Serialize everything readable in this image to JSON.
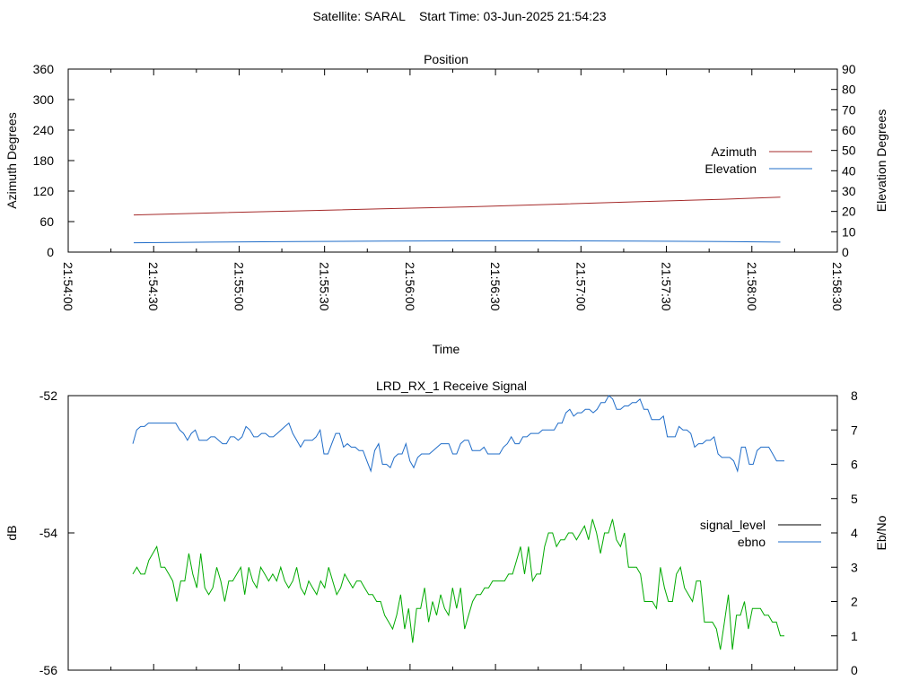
{
  "figure_title": "Satellite: SARAL    Start Time: 03-Jun-2025 21:54:23",
  "colors": {
    "azimuth": "#a52a2a",
    "elevation": "#1f6cc8",
    "signal_level": "#000000",
    "ebno_legend": "#1f6cc8",
    "ebno_line": "#1f6cc8",
    "signal_line": "#00aa00"
  },
  "chart_data": [
    {
      "type": "line",
      "title": "Position",
      "xlabel": "Time",
      "ylabel": "Azimuth Degrees",
      "y2label": "Elevation Degrees",
      "grid": false,
      "legend_position": "right",
      "x_ticks": [
        "21:54:00",
        "21:54:30",
        "21:55:00",
        "21:55:30",
        "21:56:00",
        "21:56:30",
        "21:57:00",
        "21:57:30",
        "21:58:00",
        "21:58:30"
      ],
      "ylim": [
        0,
        360
      ],
      "yticks": [
        "0",
        "60",
        "120",
        "180",
        "240",
        "300",
        "360"
      ],
      "y2lim": [
        0,
        90
      ],
      "y2ticks": [
        "0",
        "10",
        "20",
        "30",
        "40",
        "50",
        "60",
        "70",
        "80",
        "90"
      ],
      "series": [
        {
          "name": "Azimuth",
          "axis": "left",
          "x": [
            "21:54:23",
            "21:54:50",
            "21:55:20",
            "21:55:50",
            "21:56:20",
            "21:56:50",
            "21:57:20",
            "21:57:50",
            "21:58:10"
          ],
          "values": [
            73,
            77,
            81,
            85,
            89,
            94,
            99,
            104,
            108
          ]
        },
        {
          "name": "Elevation",
          "axis": "right",
          "x": [
            "21:54:23",
            "21:54:50",
            "21:55:20",
            "21:55:50",
            "21:56:20",
            "21:56:50",
            "21:57:20",
            "21:57:50",
            "21:58:10"
          ],
          "values": [
            4.6,
            4.9,
            5.2,
            5.4,
            5.5,
            5.5,
            5.4,
            5.2,
            4.9
          ]
        }
      ]
    },
    {
      "type": "line",
      "title": "LRD_RX_1 Receive Signal",
      "ylabel": "dB",
      "y2label": "Eb/No",
      "grid": false,
      "legend_position": "right",
      "ylim": [
        -56,
        -52
      ],
      "yticks": [
        "-56",
        "-54",
        "-52"
      ],
      "y2lim": [
        0,
        8
      ],
      "y2ticks": [
        "0",
        "1",
        "2",
        "3",
        "4",
        "5",
        "6",
        "7",
        "8"
      ],
      "legend": [
        "signal_level",
        "ebno"
      ],
      "series": [
        {
          "name": "ebno",
          "axis": "right",
          "values": [
            6.6,
            7.0,
            7.1,
            7.1,
            7.2,
            7.2,
            7.2,
            7.2,
            7.2,
            7.2,
            7.2,
            7.2,
            7.0,
            6.9,
            6.7,
            6.9,
            7.0,
            6.7,
            6.7,
            6.7,
            6.8,
            6.8,
            6.7,
            6.6,
            6.6,
            6.8,
            6.8,
            6.7,
            6.8,
            7.1,
            7.0,
            6.8,
            6.8,
            6.9,
            6.9,
            6.8,
            6.8,
            6.9,
            7.0,
            7.1,
            7.2,
            6.9,
            6.7,
            6.5,
            6.7,
            6.7,
            6.7,
            6.8,
            7.0,
            6.3,
            6.3,
            6.6,
            6.9,
            6.9,
            6.5,
            6.6,
            6.5,
            6.5,
            6.4,
            6.4,
            6.1,
            5.8,
            6.4,
            6.6,
            6.0,
            6.0,
            5.9,
            6.2,
            6.3,
            6.3,
            6.6,
            6.1,
            5.9,
            6.2,
            6.3,
            6.3,
            6.3,
            6.4,
            6.5,
            6.6,
            6.6,
            6.6,
            6.3,
            6.3,
            6.6,
            6.7,
            6.7,
            6.4,
            6.4,
            6.4,
            6.5,
            6.3,
            6.3,
            6.3,
            6.3,
            6.5,
            6.6,
            6.8,
            6.6,
            6.6,
            6.8,
            6.8,
            6.9,
            6.9,
            6.9,
            7.0,
            7.0,
            7.0,
            7.0,
            7.2,
            7.2,
            7.5,
            7.6,
            7.4,
            7.5,
            7.5,
            7.6,
            7.6,
            7.5,
            7.6,
            7.8,
            7.8,
            8.0,
            7.9,
            7.6,
            7.6,
            7.7,
            7.7,
            7.8,
            7.8,
            7.9,
            7.6,
            7.6,
            7.3,
            7.3,
            7.3,
            7.4,
            6.8,
            6.8,
            6.8,
            7.1,
            7.0,
            7.0,
            6.9,
            6.5,
            6.6,
            6.6,
            6.7,
            6.7,
            6.8,
            6.3,
            6.2,
            6.2,
            6.2,
            6.1,
            5.8,
            6.5,
            6.5,
            6.0,
            6.0,
            6.4,
            6.5,
            6.5,
            6.5,
            6.3,
            6.1,
            6.1,
            6.1
          ]
        },
        {
          "name": "signal_level",
          "axis": "left",
          "values": [
            -54.6,
            -54.5,
            -54.6,
            -54.6,
            -54.4,
            -54.3,
            -54.2,
            -54.5,
            -54.5,
            -54.6,
            -54.7,
            -55.0,
            -54.7,
            -54.7,
            -54.3,
            -54.6,
            -54.8,
            -54.3,
            -54.8,
            -54.9,
            -54.8,
            -54.5,
            -54.7,
            -55.0,
            -54.7,
            -54.7,
            -54.6,
            -54.5,
            -54.9,
            -54.5,
            -54.7,
            -54.8,
            -54.5,
            -54.6,
            -54.7,
            -54.6,
            -54.7,
            -54.5,
            -54.7,
            -54.8,
            -54.7,
            -54.5,
            -54.8,
            -54.9,
            -54.7,
            -54.8,
            -54.9,
            -54.7,
            -54.8,
            -54.5,
            -54.7,
            -54.9,
            -54.8,
            -54.6,
            -54.7,
            -54.8,
            -54.7,
            -54.7,
            -54.8,
            -54.9,
            -54.9,
            -55.0,
            -55.0,
            -55.2,
            -55.3,
            -55.4,
            -55.2,
            -54.9,
            -55.4,
            -55.1,
            -55.6,
            -55.1,
            -55.1,
            -54.8,
            -55.3,
            -55.0,
            -55.2,
            -54.9,
            -55.1,
            -55.2,
            -54.8,
            -55.1,
            -54.8,
            -55.4,
            -55.2,
            -55.0,
            -54.9,
            -54.9,
            -54.8,
            -54.8,
            -54.7,
            -54.7,
            -54.7,
            -54.7,
            -54.6,
            -54.6,
            -54.4,
            -54.2,
            -54.6,
            -54.2,
            -54.7,
            -54.6,
            -54.6,
            -54.2,
            -54.0,
            -54.0,
            -54.2,
            -54.1,
            -54.1,
            -54.0,
            -54.0,
            -54.1,
            -54.0,
            -53.9,
            -54.1,
            -53.8,
            -54.0,
            -54.3,
            -54.0,
            -54.0,
            -53.8,
            -54.1,
            -54.2,
            -54.0,
            -54.5,
            -54.5,
            -54.5,
            -54.6,
            -55.0,
            -55.0,
            -55.0,
            -55.1,
            -54.5,
            -54.8,
            -55.0,
            -55.0,
            -54.6,
            -54.5,
            -54.8,
            -54.9,
            -55.0,
            -54.7,
            -54.7,
            -55.3,
            -55.3,
            -55.3,
            -55.4,
            -55.7,
            -55.3,
            -54.9,
            -55.7,
            -55.2,
            -55.2,
            -55.0,
            -55.4,
            -55.1,
            -55.1,
            -55.1,
            -55.2,
            -55.2,
            -55.3,
            -55.3,
            -55.5,
            -55.5
          ]
        }
      ]
    }
  ]
}
